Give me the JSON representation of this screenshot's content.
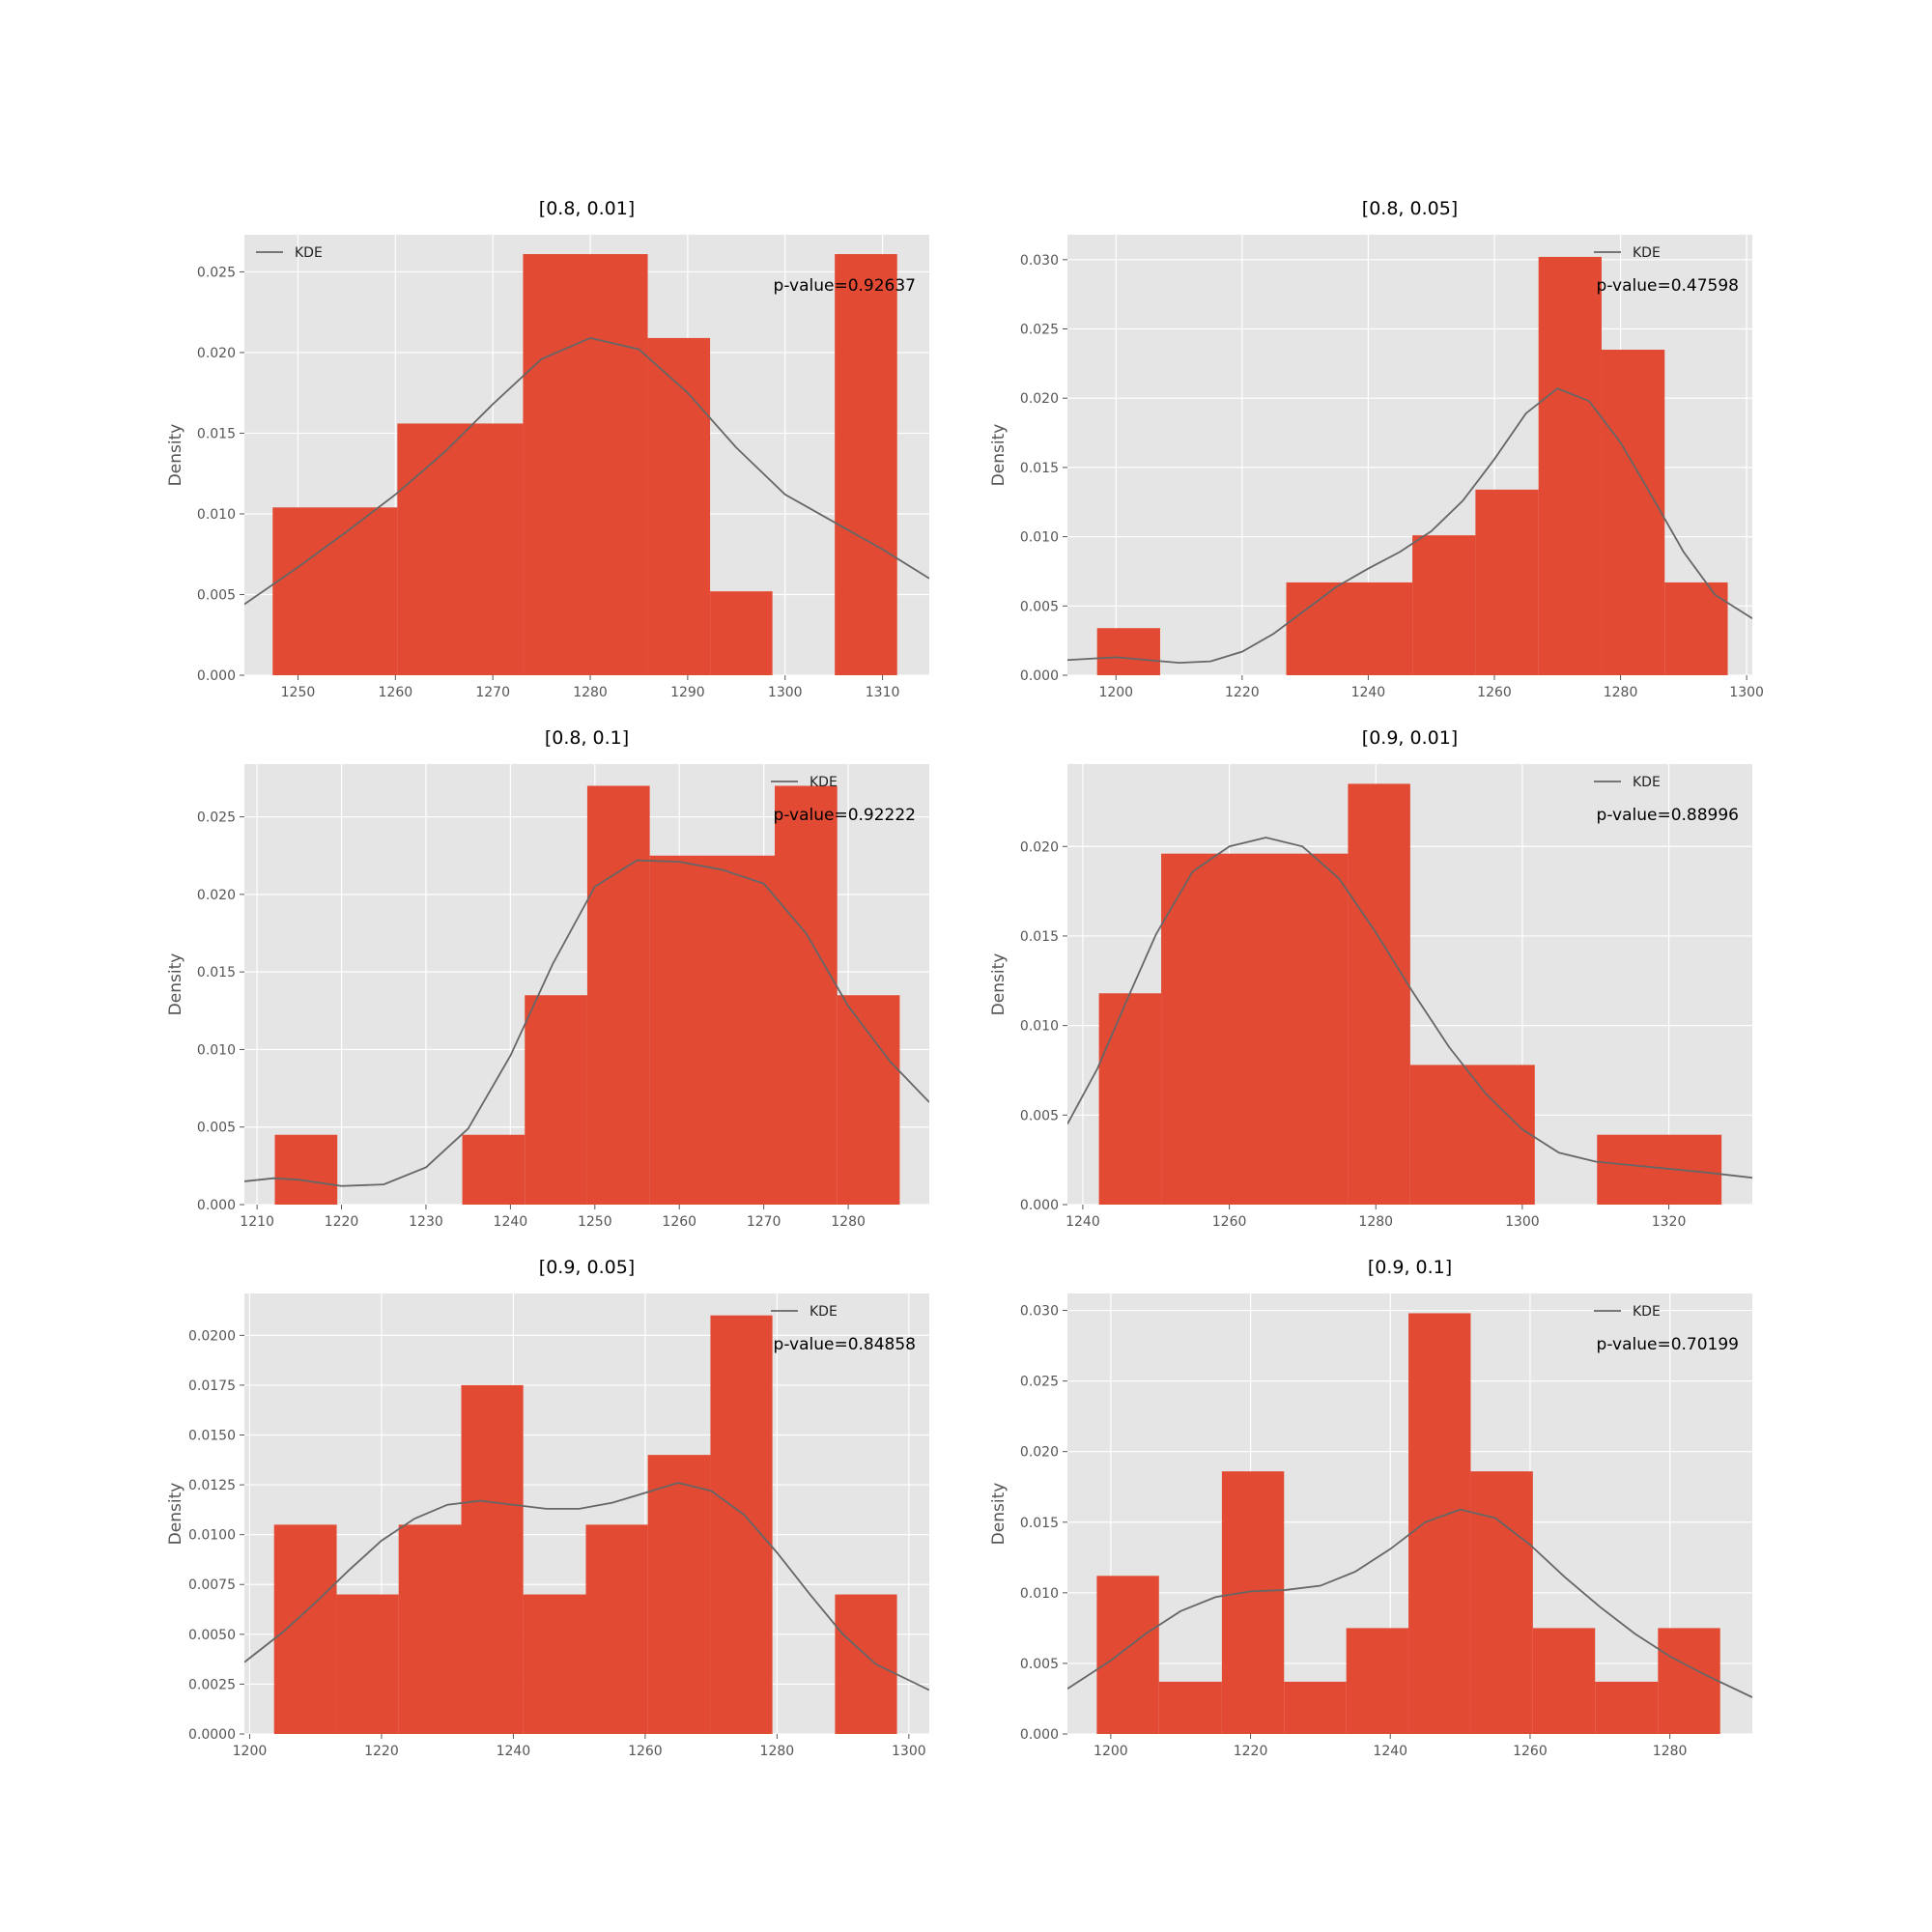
{
  "chart_data": [
    {
      "type": "histogram",
      "title": "[0.8, 0.01]",
      "ylabel": "Density",
      "legend": "KDE",
      "legend_position": "top-left",
      "annotation": "p-value=0.92637",
      "xlim": [
        1244.5,
        1314.8
      ],
      "ylim": [
        0,
        0.0273
      ],
      "xticks": [
        1250,
        1260,
        1270,
        1280,
        1290,
        1300,
        1310
      ],
      "yticks": [
        0.0,
        0.005,
        0.01,
        0.015,
        0.02,
        0.025
      ],
      "ytick_labels": [
        "0.000",
        "0.005",
        "0.010",
        "0.015",
        "0.020",
        "0.025"
      ],
      "bins": [
        {
          "x0": 1247.4,
          "x1": 1260.2,
          "density": 0.0104
        },
        {
          "x0": 1260.2,
          "x1": 1273.1,
          "density": 0.0156
        },
        {
          "x0": 1273.1,
          "x1": 1285.9,
          "density": 0.0261
        },
        {
          "x0": 1285.9,
          "x1": 1292.3,
          "density": 0.0209
        },
        {
          "x0": 1292.3,
          "x1": 1298.7,
          "density": 0.0052
        },
        {
          "x0": 1298.7,
          "x1": 1305.1,
          "density": 0.0
        },
        {
          "x0": 1305.1,
          "x1": 1311.5,
          "density": 0.0261
        }
      ],
      "kde": [
        [
          1244.5,
          0.0044
        ],
        [
          1250,
          0.0067
        ],
        [
          1255,
          0.0089
        ],
        [
          1260,
          0.0112
        ],
        [
          1265,
          0.0138
        ],
        [
          1270,
          0.0168
        ],
        [
          1275,
          0.0196
        ],
        [
          1280,
          0.0209
        ],
        [
          1285,
          0.0202
        ],
        [
          1290,
          0.0175
        ],
        [
          1295,
          0.0141
        ],
        [
          1300,
          0.0112
        ],
        [
          1305,
          0.0095
        ],
        [
          1310,
          0.0078
        ],
        [
          1314.8,
          0.006
        ]
      ]
    },
    {
      "type": "histogram",
      "title": "[0.8, 0.05]",
      "ylabel": "Density",
      "legend": "KDE",
      "legend_position": "top-right",
      "annotation": "p-value=0.47598",
      "xlim": [
        1192.3,
        1300.9
      ],
      "ylim": [
        0,
        0.0318
      ],
      "xticks": [
        1200,
        1220,
        1240,
        1260,
        1280,
        1300
      ],
      "yticks": [
        0.0,
        0.005,
        0.01,
        0.015,
        0.02,
        0.025,
        0.03
      ],
      "ytick_labels": [
        "0.000",
        "0.005",
        "0.010",
        "0.015",
        "0.020",
        "0.025",
        "0.030"
      ],
      "bins": [
        {
          "x0": 1197.0,
          "x1": 1207.0,
          "density": 0.0034
        },
        {
          "x0": 1227.0,
          "x1": 1247.0,
          "density": 0.0067
        },
        {
          "x0": 1247.0,
          "x1": 1257.0,
          "density": 0.0101
        },
        {
          "x0": 1257.0,
          "x1": 1267.0,
          "density": 0.0134
        },
        {
          "x0": 1267.0,
          "x1": 1277.0,
          "density": 0.0302
        },
        {
          "x0": 1277.0,
          "x1": 1287.0,
          "density": 0.0235
        },
        {
          "x0": 1287.0,
          "x1": 1297.0,
          "density": 0.0067
        }
      ],
      "kde": [
        [
          1192.3,
          0.0011
        ],
        [
          1200,
          0.0013
        ],
        [
          1205,
          0.0011
        ],
        [
          1210,
          0.0009
        ],
        [
          1215,
          0.001
        ],
        [
          1220,
          0.0017
        ],
        [
          1225,
          0.003
        ],
        [
          1230,
          0.0047
        ],
        [
          1235,
          0.0064
        ],
        [
          1240,
          0.0077
        ],
        [
          1245,
          0.0089
        ],
        [
          1250,
          0.0104
        ],
        [
          1255,
          0.0126
        ],
        [
          1260,
          0.0156
        ],
        [
          1265,
          0.0189
        ],
        [
          1270,
          0.0207
        ],
        [
          1275,
          0.0198
        ],
        [
          1280,
          0.0168
        ],
        [
          1285,
          0.0129
        ],
        [
          1290,
          0.0089
        ],
        [
          1295,
          0.0058
        ],
        [
          1300.9,
          0.0041
        ]
      ]
    },
    {
      "type": "histogram",
      "title": "[0.8, 0.1]",
      "ylabel": "Density",
      "legend": "KDE",
      "legend_position": "top-right",
      "annotation": "p-value=0.92222",
      "xlim": [
        1208.5,
        1289.6
      ],
      "ylim": [
        0,
        0.0284
      ],
      "xticks": [
        1210,
        1220,
        1230,
        1240,
        1250,
        1260,
        1270,
        1280
      ],
      "yticks": [
        0.0,
        0.005,
        0.01,
        0.015,
        0.02,
        0.025
      ],
      "ytick_labels": [
        "0.000",
        "0.005",
        "0.010",
        "0.015",
        "0.020",
        "0.025"
      ],
      "bins": [
        {
          "x0": 1212.1,
          "x1": 1219.5,
          "density": 0.0045
        },
        {
          "x0": 1234.3,
          "x1": 1241.7,
          "density": 0.0045
        },
        {
          "x0": 1241.7,
          "x1": 1249.1,
          "density": 0.0135
        },
        {
          "x0": 1249.1,
          "x1": 1256.5,
          "density": 0.027
        },
        {
          "x0": 1256.5,
          "x1": 1271.3,
          "density": 0.0225
        },
        {
          "x0": 1271.3,
          "x1": 1278.7,
          "density": 0.027
        },
        {
          "x0": 1278.7,
          "x1": 1286.1,
          "density": 0.0135
        }
      ],
      "kde": [
        [
          1208.5,
          0.0015
        ],
        [
          1212,
          0.0017
        ],
        [
          1215,
          0.0016
        ],
        [
          1220,
          0.0012
        ],
        [
          1225,
          0.0013
        ],
        [
          1230,
          0.0024
        ],
        [
          1235,
          0.0049
        ],
        [
          1240,
          0.0096
        ],
        [
          1245,
          0.0155
        ],
        [
          1250,
          0.0205
        ],
        [
          1255,
          0.0222
        ],
        [
          1260,
          0.0221
        ],
        [
          1265,
          0.0216
        ],
        [
          1270,
          0.0207
        ],
        [
          1275,
          0.0175
        ],
        [
          1280,
          0.0128
        ],
        [
          1285,
          0.0092
        ],
        [
          1289.6,
          0.0066
        ]
      ]
    },
    {
      "type": "histogram",
      "title": "[0.9, 0.01]",
      "ylabel": "Density",
      "legend": "KDE",
      "legend_position": "top-right",
      "annotation": "p-value=0.88996",
      "xlim": [
        1237.9,
        1331.4
      ],
      "ylim": [
        0,
        0.0246
      ],
      "xticks": [
        1240,
        1260,
        1280,
        1300,
        1320
      ],
      "yticks": [
        0.0,
        0.005,
        0.01,
        0.015,
        0.02
      ],
      "ytick_labels": [
        "0.000",
        "0.005",
        "0.010",
        "0.015",
        "0.020"
      ],
      "bins": [
        {
          "x0": 1242.2,
          "x1": 1250.7,
          "density": 0.0118
        },
        {
          "x0": 1250.7,
          "x1": 1276.2,
          "density": 0.0196
        },
        {
          "x0": 1276.2,
          "x1": 1284.7,
          "density": 0.0235
        },
        {
          "x0": 1284.7,
          "x1": 1301.7,
          "density": 0.0078
        },
        {
          "x0": 1310.2,
          "x1": 1327.2,
          "density": 0.0039
        }
      ],
      "kde": [
        [
          1237.9,
          0.0045
        ],
        [
          1242,
          0.0076
        ],
        [
          1246,
          0.0114
        ],
        [
          1250,
          0.0151
        ],
        [
          1255,
          0.0186
        ],
        [
          1260,
          0.02
        ],
        [
          1265,
          0.0205
        ],
        [
          1270,
          0.02
        ],
        [
          1275,
          0.0182
        ],
        [
          1280,
          0.0152
        ],
        [
          1285,
          0.0119
        ],
        [
          1290,
          0.0088
        ],
        [
          1295,
          0.0062
        ],
        [
          1300,
          0.0042
        ],
        [
          1305,
          0.0029
        ],
        [
          1310,
          0.0024
        ],
        [
          1315,
          0.0022
        ],
        [
          1320,
          0.002
        ],
        [
          1325,
          0.0018
        ],
        [
          1331.4,
          0.0015
        ]
      ]
    },
    {
      "type": "histogram",
      "title": "[0.9, 0.05]",
      "ylabel": "Density",
      "legend": "KDE",
      "legend_position": "top-right",
      "annotation": "p-value=0.84858",
      "xlim": [
        1199.2,
        1303.1
      ],
      "ylim": [
        0,
        0.0221
      ],
      "xticks": [
        1200,
        1220,
        1240,
        1260,
        1280,
        1300
      ],
      "yticks": [
        0.0,
        0.0025,
        0.005,
        0.0075,
        0.01,
        0.0125,
        0.015,
        0.0175,
        0.02
      ],
      "ytick_labels": [
        "0.0000",
        "0.0025",
        "0.0050",
        "0.0075",
        "0.0100",
        "0.0125",
        "0.0150",
        "0.0175",
        "0.0200"
      ],
      "bins": [
        {
          "x0": 1203.7,
          "x1": 1213.2,
          "density": 0.0105
        },
        {
          "x0": 1213.2,
          "x1": 1222.6,
          "density": 0.007
        },
        {
          "x0": 1222.6,
          "x1": 1232.1,
          "density": 0.0105
        },
        {
          "x0": 1232.1,
          "x1": 1241.5,
          "density": 0.0175
        },
        {
          "x0": 1241.5,
          "x1": 1251.0,
          "density": 0.007
        },
        {
          "x0": 1251.0,
          "x1": 1260.4,
          "density": 0.0105
        },
        {
          "x0": 1260.4,
          "x1": 1269.9,
          "density": 0.014
        },
        {
          "x0": 1269.9,
          "x1": 1279.3,
          "density": 0.021
        },
        {
          "x0": 1288.8,
          "x1": 1298.2,
          "density": 0.007
        }
      ],
      "kde": [
        [
          1199.2,
          0.0036
        ],
        [
          1205,
          0.0051
        ],
        [
          1210,
          0.0066
        ],
        [
          1215,
          0.0082
        ],
        [
          1220,
          0.0097
        ],
        [
          1225,
          0.0108
        ],
        [
          1230,
          0.0115
        ],
        [
          1235,
          0.0117
        ],
        [
          1240,
          0.0115
        ],
        [
          1245,
          0.0113
        ],
        [
          1250,
          0.0113
        ],
        [
          1255,
          0.0116
        ],
        [
          1260,
          0.0121
        ],
        [
          1265,
          0.0126
        ],
        [
          1270,
          0.0122
        ],
        [
          1275,
          0.011
        ],
        [
          1280,
          0.0091
        ],
        [
          1285,
          0.007
        ],
        [
          1290,
          0.005
        ],
        [
          1295,
          0.0035
        ],
        [
          1303.1,
          0.0022
        ]
      ]
    },
    {
      "type": "histogram",
      "title": "[0.9, 0.1]",
      "ylabel": "Density",
      "legend": "KDE",
      "legend_position": "top-right",
      "annotation": "p-value=0.70199",
      "xlim": [
        1193.8,
        1291.8
      ],
      "ylim": [
        0,
        0.0312
      ],
      "xticks": [
        1200,
        1220,
        1240,
        1260,
        1280
      ],
      "yticks": [
        0.0,
        0.005,
        0.01,
        0.015,
        0.02,
        0.025,
        0.03
      ],
      "ytick_labels": [
        "0.000",
        "0.005",
        "0.010",
        "0.015",
        "0.020",
        "0.025",
        "0.030"
      ],
      "bins": [
        {
          "x0": 1198.0,
          "x1": 1206.9,
          "density": 0.0112
        },
        {
          "x0": 1206.9,
          "x1": 1215.9,
          "density": 0.0037
        },
        {
          "x0": 1215.9,
          "x1": 1224.8,
          "density": 0.0186
        },
        {
          "x0": 1224.8,
          "x1": 1233.7,
          "density": 0.0037
        },
        {
          "x0": 1233.7,
          "x1": 1242.6,
          "density": 0.0075
        },
        {
          "x0": 1242.6,
          "x1": 1251.5,
          "density": 0.0298
        },
        {
          "x0": 1251.5,
          "x1": 1260.4,
          "density": 0.0186
        },
        {
          "x0": 1260.4,
          "x1": 1269.3,
          "density": 0.0075
        },
        {
          "x0": 1269.3,
          "x1": 1278.3,
          "density": 0.0037
        },
        {
          "x0": 1278.3,
          "x1": 1287.2,
          "density": 0.0075
        }
      ],
      "kde": [
        [
          1193.8,
          0.0032
        ],
        [
          1200,
          0.0052
        ],
        [
          1205,
          0.0071
        ],
        [
          1210,
          0.0087
        ],
        [
          1215,
          0.0097
        ],
        [
          1220,
          0.0101
        ],
        [
          1225,
          0.0102
        ],
        [
          1230,
          0.0105
        ],
        [
          1235,
          0.0115
        ],
        [
          1240,
          0.0131
        ],
        [
          1245,
          0.015
        ],
        [
          1250,
          0.0159
        ],
        [
          1255,
          0.0153
        ],
        [
          1260,
          0.0134
        ],
        [
          1265,
          0.0111
        ],
        [
          1270,
          0.009
        ],
        [
          1275,
          0.0071
        ],
        [
          1280,
          0.0055
        ],
        [
          1285,
          0.0042
        ],
        [
          1291.8,
          0.0026
        ]
      ]
    }
  ],
  "colors": {
    "bar": "#e24a33",
    "kde_line": "#666666",
    "panel_bg": "#e5e5e5",
    "grid": "#ffffff",
    "page_bg": "#ffffff"
  }
}
